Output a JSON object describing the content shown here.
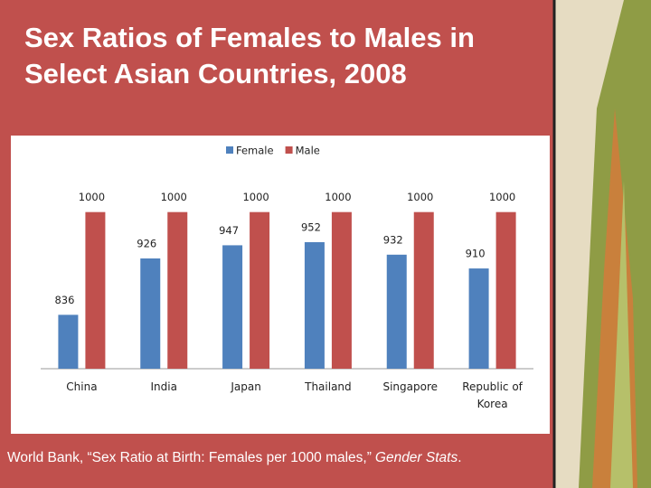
{
  "chart_data": {
    "type": "bar",
    "title": "Sex Ratios of Females to Males in Select Asian Countries, 2008",
    "categories": [
      "China",
      "India",
      "Japan",
      "Thailand",
      "Singapore",
      "Republic of Korea"
    ],
    "series": [
      {
        "name": "Female",
        "color": "#4f81bd",
        "values": [
          836,
          926,
          947,
          952,
          932,
          910
        ]
      },
      {
        "name": "Male",
        "color": "#c0504d",
        "values": [
          1000,
          1000,
          1000,
          1000,
          1000,
          1000
        ]
      }
    ],
    "ylim": [
      750,
      1050
    ],
    "source": [
      "World Bank, “Sex Ratio at Birth: Females per 1000 males,”",
      "Gender Stats",
      "."
    ]
  }
}
